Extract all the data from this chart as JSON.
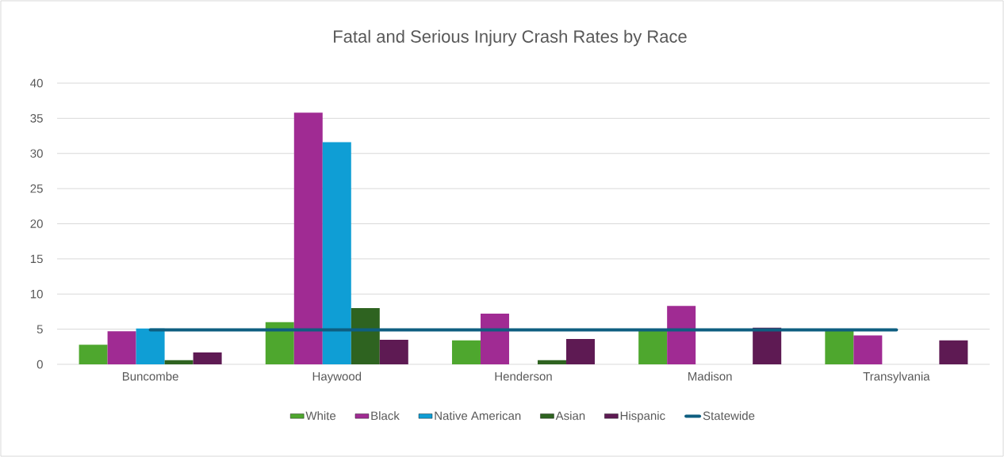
{
  "chart_data": {
    "type": "bar",
    "title": "Fatal and Serious Injury Crash Rates by Race",
    "categories": [
      "Buncombe",
      "Haywood",
      "Henderson",
      "Madison",
      "Transylvania"
    ],
    "series": [
      {
        "name": "White",
        "color": "#4ea72e",
        "values": [
          2.8,
          6.0,
          3.4,
          4.9,
          4.9
        ]
      },
      {
        "name": "Black",
        "color": "#a02b93",
        "values": [
          4.7,
          35.8,
          7.2,
          8.3,
          4.1
        ]
      },
      {
        "name": "Native American",
        "color": "#0f9ed5",
        "values": [
          5.1,
          31.6,
          null,
          null,
          null
        ]
      },
      {
        "name": "Asian",
        "color": "#2e6320",
        "values": [
          0.6,
          8.0,
          0.6,
          null,
          null
        ]
      },
      {
        "name": "Hispanic",
        "color": "#5e1a53",
        "values": [
          1.7,
          3.5,
          3.6,
          5.2,
          3.4
        ]
      },
      {
        "name": "Statewide",
        "type": "line",
        "color": "#0e5e80",
        "values": [
          4.9,
          4.9,
          4.9,
          4.9,
          4.9
        ]
      }
    ],
    "ylim": [
      0,
      40
    ],
    "yticks": [
      0,
      5,
      10,
      15,
      20,
      25,
      30,
      35,
      40
    ],
    "grid": "y",
    "legend": "bottom",
    "marker": "none"
  }
}
